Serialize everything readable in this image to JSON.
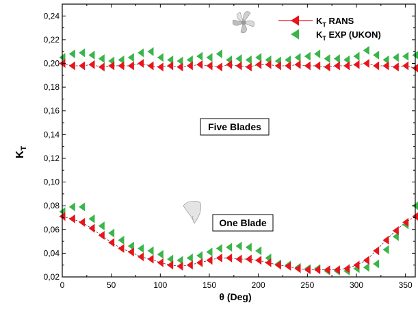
{
  "chart_data": {
    "type": "scatter",
    "xlabel": "θ (Deg)",
    "ylabel": "K",
    "ylabel_sub": "T",
    "xlim": [
      0,
      360
    ],
    "ylim": [
      0.02,
      0.25
    ],
    "x_ticks": [
      0,
      50,
      100,
      150,
      200,
      250,
      300,
      350
    ],
    "y_ticks": [
      0.02,
      0.04,
      0.06,
      0.08,
      0.1,
      0.12,
      0.14,
      0.16,
      0.18,
      0.2,
      0.22,
      0.24
    ],
    "y_tick_labels": [
      "0,02",
      "0,04",
      "0,06",
      "0,08",
      "0,10",
      "0,12",
      "0,14",
      "0,16",
      "0,18",
      "0,20",
      "0,22",
      "0,24"
    ],
    "grid": false,
    "legend_position": "top-right",
    "legend": [
      {
        "main": "K",
        "sub": "T",
        "rest": " RANS",
        "color": "#e8141c",
        "marker": "triangle-left",
        "line": true
      },
      {
        "main": "K",
        "sub": "T",
        "rest": " EXP (UKON)",
        "color": "#39b54a",
        "marker": "triangle-left",
        "line": false
      }
    ],
    "annotations": [
      "Five Blades",
      "One Blade"
    ],
    "series": [
      {
        "group": "five-blades",
        "kind": "rans",
        "color": "#e8141c",
        "x": [
          0,
          10,
          20,
          30,
          40,
          50,
          60,
          70,
          80,
          90,
          100,
          110,
          120,
          130,
          140,
          150,
          160,
          170,
          180,
          190,
          200,
          210,
          220,
          230,
          240,
          250,
          260,
          270,
          280,
          290,
          300,
          310,
          320,
          330,
          340,
          350,
          360
        ],
        "y": [
          0.2,
          0.198,
          0.198,
          0.199,
          0.197,
          0.198,
          0.198,
          0.198,
          0.2,
          0.198,
          0.197,
          0.198,
          0.197,
          0.198,
          0.199,
          0.198,
          0.197,
          0.199,
          0.198,
          0.197,
          0.199,
          0.199,
          0.198,
          0.198,
          0.199,
          0.198,
          0.198,
          0.197,
          0.198,
          0.198,
          0.199,
          0.2,
          0.198,
          0.198,
          0.197,
          0.198,
          0.196
        ]
      },
      {
        "group": "five-blades",
        "kind": "exp",
        "color": "#39b54a",
        "x": [
          0,
          10,
          20,
          30,
          40,
          50,
          60,
          70,
          80,
          90,
          100,
          110,
          120,
          130,
          140,
          150,
          160,
          170,
          180,
          190,
          200,
          210,
          220,
          230,
          240,
          250,
          260,
          270,
          280,
          290,
          300,
          310,
          320,
          330,
          340,
          350,
          360
        ],
        "y": [
          0.205,
          0.208,
          0.209,
          0.207,
          0.204,
          0.202,
          0.203,
          0.205,
          0.209,
          0.21,
          0.205,
          0.203,
          0.202,
          0.203,
          0.206,
          0.205,
          0.208,
          0.203,
          0.204,
          0.203,
          0.205,
          0.203,
          0.202,
          0.203,
          0.205,
          0.206,
          0.208,
          0.204,
          0.204,
          0.203,
          0.206,
          0.211,
          0.207,
          0.203,
          0.205,
          0.206,
          0.207
        ]
      },
      {
        "group": "one-blade",
        "kind": "rans",
        "color": "#e8141c",
        "x": [
          0,
          10,
          20,
          30,
          40,
          50,
          60,
          70,
          80,
          90,
          100,
          110,
          120,
          130,
          140,
          150,
          160,
          170,
          180,
          190,
          200,
          210,
          220,
          230,
          240,
          250,
          260,
          270,
          280,
          290,
          300,
          310,
          320,
          330,
          340,
          350,
          360
        ],
        "y": [
          0.071,
          0.069,
          0.066,
          0.061,
          0.055,
          0.049,
          0.044,
          0.041,
          0.037,
          0.035,
          0.032,
          0.03,
          0.029,
          0.03,
          0.032,
          0.034,
          0.036,
          0.036,
          0.035,
          0.035,
          0.034,
          0.032,
          0.03,
          0.029,
          0.027,
          0.026,
          0.026,
          0.026,
          0.026,
          0.027,
          0.03,
          0.034,
          0.042,
          0.051,
          0.059,
          0.066,
          0.071
        ]
      },
      {
        "group": "one-blade",
        "kind": "exp",
        "color": "#39b54a",
        "x": [
          0,
          10,
          20,
          30,
          40,
          50,
          60,
          70,
          80,
          90,
          100,
          110,
          120,
          130,
          140,
          150,
          160,
          170,
          180,
          190,
          200,
          210,
          220,
          230,
          240,
          250,
          260,
          270,
          280,
          290,
          300,
          310,
          320,
          330,
          340,
          350,
          360
        ],
        "y": [
          0.075,
          0.079,
          0.079,
          0.069,
          0.063,
          0.057,
          0.051,
          0.046,
          0.044,
          0.042,
          0.039,
          0.035,
          0.034,
          0.036,
          0.038,
          0.041,
          0.044,
          0.045,
          0.046,
          0.045,
          0.042,
          0.036,
          0.031,
          0.03,
          0.028,
          0.027,
          0.027,
          0.025,
          0.025,
          0.025,
          0.027,
          0.028,
          0.031,
          0.043,
          0.054,
          0.064,
          0.08
        ]
      }
    ]
  }
}
